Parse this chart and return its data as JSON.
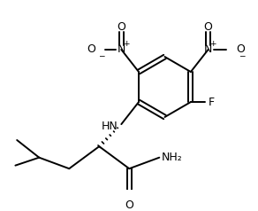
{
  "bg_color": "#ffffff",
  "line_color": "#000000",
  "line_width": 1.4,
  "figsize": [
    2.92,
    2.38
  ],
  "dpi": 100,
  "xlim": [
    0,
    292
  ],
  "ylim": [
    0,
    238
  ]
}
